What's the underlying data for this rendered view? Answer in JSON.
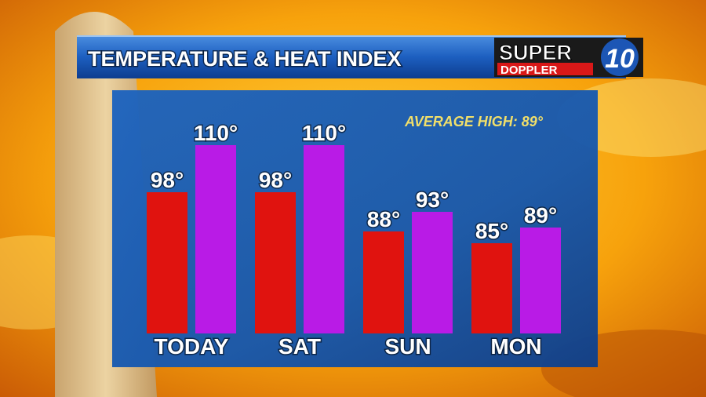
{
  "chart_data": {
    "type": "bar",
    "title": "TEMPERATURE & HEAT INDEX",
    "annotation": "AVERAGE HIGH: 89°",
    "categories": [
      "TODAY",
      "SAT",
      "SUN",
      "MON"
    ],
    "series": [
      {
        "color": "#e0130f",
        "values": [
          98,
          98,
          88,
          85
        ],
        "value_labels": [
          "98°",
          "98°",
          "88°",
          "85°"
        ]
      },
      {
        "color": "#b91be6",
        "values": [
          110,
          110,
          93,
          89
        ],
        "value_labels": [
          "110°",
          "110°",
          "93°",
          "89°"
        ]
      }
    ],
    "ylim": [
      62,
      112
    ]
  },
  "logo": {
    "line1": "SUPER",
    "line2": "DOPPLER",
    "number": "10"
  }
}
